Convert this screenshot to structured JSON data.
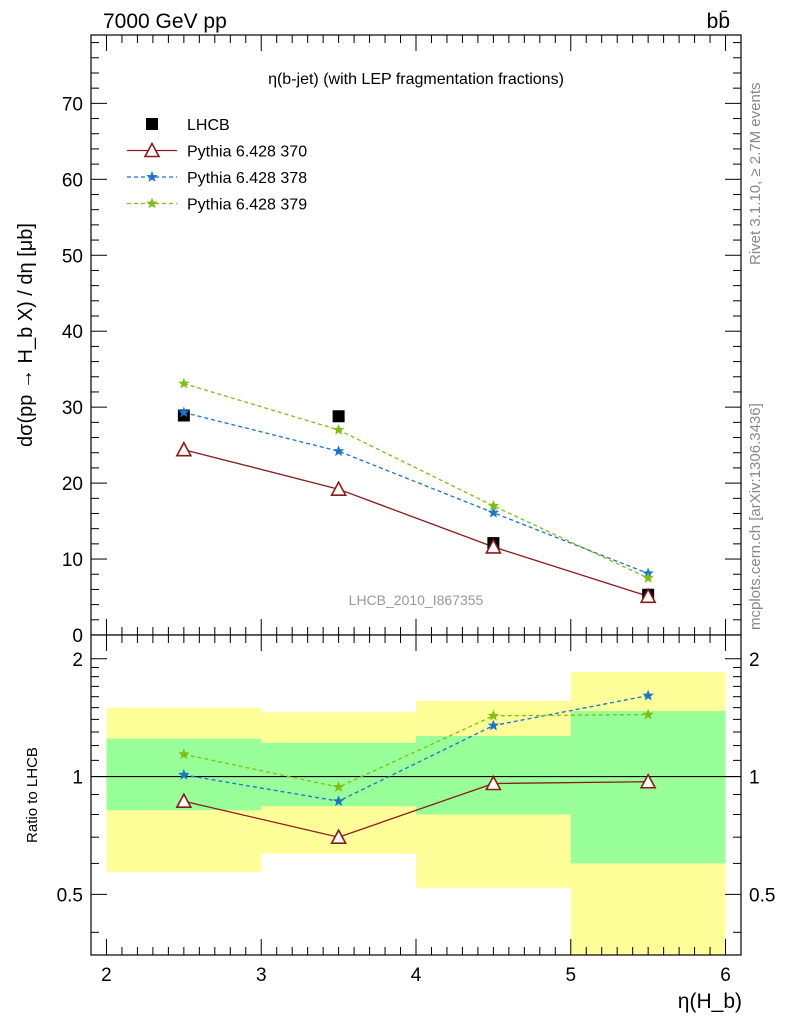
{
  "header": {
    "left": "7000 GeV pp",
    "right": "bb̄",
    "side_top": "Rivet 3.1.10, ≥ 2.7M events",
    "side_bottom": "mcplots.cern.ch [arXiv:1306.3436]"
  },
  "chart_data": [
    {
      "type": "scatter",
      "title": "η(b-jet) (with LEP fragmentation fractions)",
      "ylabel": "dσ(pp → H_b X) / dη [μb]",
      "watermark": "LHCB_2010_I867355",
      "xlim": [
        1.9,
        6.1
      ],
      "ylim": [
        0,
        79
      ],
      "yticks": [
        0,
        10,
        20,
        30,
        40,
        50,
        60,
        70
      ],
      "legend_position": "top-left",
      "series": [
        {
          "name": "LHCB",
          "color": "#000000",
          "marker": "square",
          "line": "none",
          "x": [
            2.5,
            3.5,
            4.5,
            5.5
          ],
          "y": [
            28.9,
            28.8,
            12.1,
            5.3
          ]
        },
        {
          "name": "Pythia 6.428 370",
          "color": "#8B1A1A",
          "marker": "open-triangle",
          "line": "solid",
          "x": [
            2.5,
            3.5,
            4.5,
            5.5
          ],
          "y": [
            24.4,
            19.2,
            11.6,
            5.1
          ]
        },
        {
          "name": "Pythia 6.428 378",
          "color": "#1874CD",
          "marker": "star",
          "line": "dashed",
          "x": [
            2.5,
            3.5,
            4.5,
            5.5
          ],
          "y": [
            29.3,
            24.2,
            16.1,
            8.1
          ]
        },
        {
          "name": "Pythia 6.428 379",
          "color": "#7FBF14",
          "marker": "star",
          "line": "dashed",
          "x": [
            2.5,
            3.5,
            4.5,
            5.5
          ],
          "y": [
            33.1,
            27.0,
            17.0,
            7.5
          ]
        }
      ]
    },
    {
      "type": "line",
      "ylabel": "Ratio to LHCB",
      "xlabel": "η(H_b)",
      "xlim": [
        1.9,
        6.1
      ],
      "xticks": [
        2,
        3,
        4,
        5,
        6
      ],
      "ylim": [
        0.35,
        2.3
      ],
      "yscale": "log",
      "yticks": [
        0.5,
        1,
        2
      ],
      "reference_line": 1,
      "bands": [
        {
          "x": [
            2,
            3
          ],
          "yellow": [
            0.57,
            1.5
          ],
          "green": [
            0.82,
            1.25
          ]
        },
        {
          "x": [
            3,
            4
          ],
          "yellow": [
            0.635,
            1.46
          ],
          "green": [
            0.84,
            1.22
          ]
        },
        {
          "x": [
            4,
            5
          ],
          "yellow": [
            0.52,
            1.56
          ],
          "green": [
            0.8,
            1.27
          ]
        },
        {
          "x": [
            5,
            6
          ],
          "yellow": [
            0.33,
            1.85
          ],
          "green": [
            0.6,
            1.47
          ]
        }
      ],
      "band_colors": {
        "yellow": "#FFFF99",
        "green": "#99FF99"
      },
      "series": [
        {
          "name": "Pythia 6.428 370",
          "color": "#8B1A1A",
          "marker": "open-triangle",
          "line": "solid",
          "x": [
            2.5,
            3.5,
            4.5,
            5.5
          ],
          "y": [
            0.865,
            0.7,
            0.96,
            0.97
          ]
        },
        {
          "name": "Pythia 6.428 378",
          "color": "#1874CD",
          "marker": "star",
          "line": "dashed",
          "x": [
            2.5,
            3.5,
            4.5,
            5.5
          ],
          "y": [
            1.01,
            0.865,
            1.35,
            1.61
          ]
        },
        {
          "name": "Pythia 6.428 379",
          "color": "#7FBF14",
          "marker": "star",
          "line": "dashed",
          "x": [
            2.5,
            3.5,
            4.5,
            5.5
          ],
          "y": [
            1.14,
            0.94,
            1.43,
            1.44
          ]
        }
      ]
    }
  ]
}
